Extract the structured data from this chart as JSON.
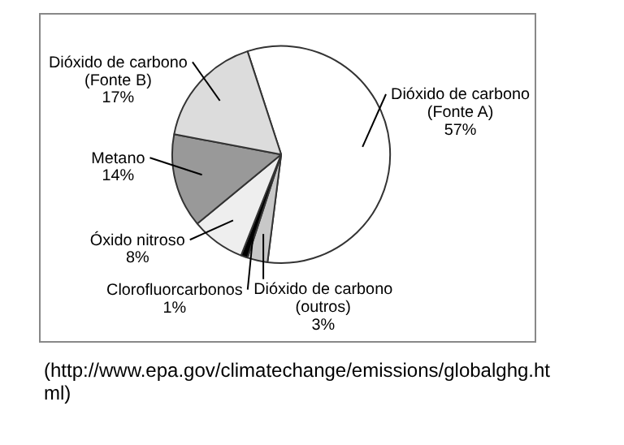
{
  "chart_data": {
    "type": "pie",
    "categories": [
      "Dióxido de carbono (Fonte A)",
      "Dióxido de carbono (outros)",
      "Clorofluorcarbonos",
      "Óxido nitroso",
      "Metano",
      "Dióxido de carbono (Fonte B)"
    ],
    "values": [
      57,
      3,
      1,
      8,
      14,
      17
    ],
    "value_labels": [
      "57%",
      "3%",
      "1%",
      "8%",
      "14%",
      "17%"
    ],
    "colors": [
      "#ffffff",
      "#c8c8c8",
      "#000000",
      "#eeeeee",
      "#999999",
      "#dcdcdc"
    ],
    "legend": false,
    "annotations": [
      "(http://www.epa.gov/climatechange/emissions/globalghg.html)"
    ]
  }
}
